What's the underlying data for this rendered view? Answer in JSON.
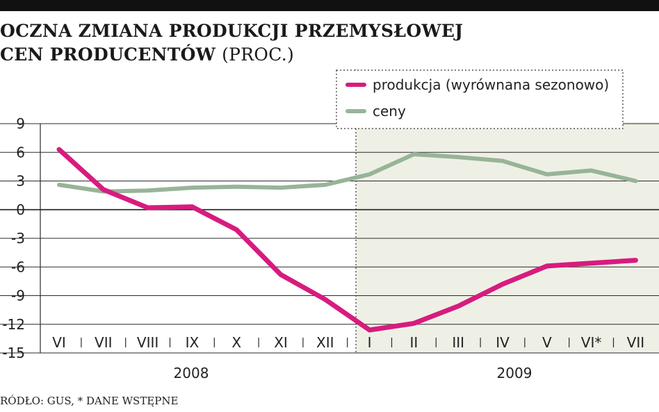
{
  "title": {
    "line1": "OCZNA ZMIANA PRODUKCJI PRZEMYSŁOWEJ",
    "line2": "CEN PRODUCENTÓW",
    "unit": "(PROC.)"
  },
  "source": "RÓDŁO: GUS, * DANE WSTĘPNE",
  "colors": {
    "produkcja": "#d81b7f",
    "ceny": "#98b497",
    "shade": "#eef0e6",
    "grid": "#2a2a2a"
  },
  "chart_data": {
    "type": "line",
    "categories": [
      "VI",
      "VII",
      "VIII",
      "IX",
      "X",
      "XI",
      "XII",
      "I",
      "II",
      "III",
      "IV",
      "V",
      "VI*",
      "VII"
    ],
    "year_labels": [
      "2008",
      "2009"
    ],
    "series": [
      {
        "name": "produkcja (wyrównana sezonowo)",
        "values": [
          6.3,
          2.1,
          0.2,
          0.3,
          -2.1,
          -6.8,
          -9.4,
          -12.6,
          -11.9,
          -10.1,
          -7.8,
          -5.9,
          -5.6,
          -5.3
        ]
      },
      {
        "name": "ceny",
        "values": [
          2.6,
          1.9,
          2.0,
          2.3,
          2.4,
          2.3,
          2.6,
          3.7,
          5.8,
          5.5,
          5.1,
          3.7,
          4.1,
          3.0
        ]
      }
    ],
    "yticks": [
      "9",
      "6",
      "3",
      "0",
      "-3",
      "-6",
      "-9",
      "-12",
      "-15"
    ],
    "ylim": [
      -15,
      9
    ],
    "grid": true,
    "legend_position": "top-right"
  }
}
